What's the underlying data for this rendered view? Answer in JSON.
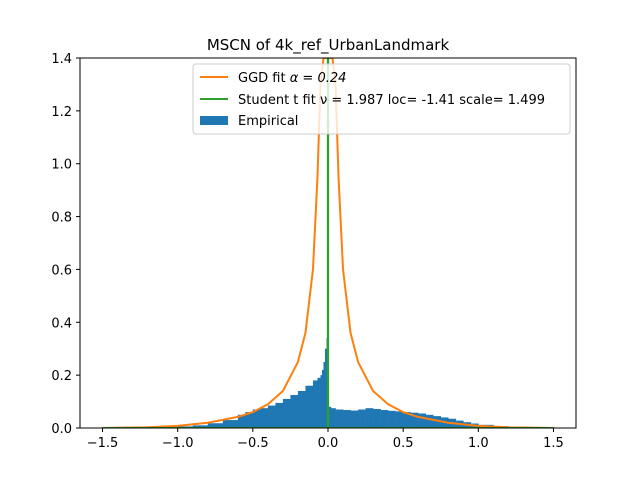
{
  "chart_data": {
    "type": "area",
    "title": "MSCN of 4k_ref_UrbanLandmark",
    "xlabel": "",
    "ylabel": "",
    "xlim": [
      -1.65,
      1.65
    ],
    "ylim": [
      0,
      1.4
    ],
    "x_ticks": [
      -1.5,
      -1.0,
      -0.5,
      0.0,
      0.5,
      1.0,
      1.5
    ],
    "x_tick_labels": [
      "−1.5",
      "−1.0",
      "−0.5",
      "0.0",
      "0.5",
      "1.0",
      "1.5"
    ],
    "y_ticks": [
      0.0,
      0.2,
      0.4,
      0.6,
      0.8,
      1.0,
      1.2,
      1.4
    ],
    "y_tick_labels": [
      "0.0",
      "0.2",
      "0.4",
      "0.6",
      "0.8",
      "1.0",
      "1.2",
      "1.4"
    ],
    "grid": false,
    "legend_position": "top-right",
    "series": [
      {
        "name": "GGD fit α = 0.24",
        "legend_label_prefix": "GGD fit ",
        "legend_label_math": "α = 0.24",
        "kind": "line",
        "color": "#ff7f0e",
        "x": [
          -1.5,
          -1.2,
          -1.0,
          -0.8,
          -0.6,
          -0.5,
          -0.4,
          -0.3,
          -0.2,
          -0.15,
          -0.1,
          -0.07,
          -0.05,
          -0.03,
          -0.02,
          0.0,
          0.02,
          0.03,
          0.05,
          0.07,
          0.1,
          0.15,
          0.2,
          0.3,
          0.4,
          0.5,
          0.6,
          0.8,
          1.0,
          1.2,
          1.5
        ],
        "y": [
          0.0,
          0.003,
          0.008,
          0.02,
          0.042,
          0.06,
          0.09,
          0.14,
          0.25,
          0.36,
          0.6,
          0.95,
          1.3,
          1.4,
          1.4,
          1.4,
          1.4,
          1.4,
          1.3,
          0.95,
          0.6,
          0.36,
          0.25,
          0.14,
          0.09,
          0.06,
          0.042,
          0.02,
          0.008,
          0.003,
          0.0
        ]
      },
      {
        "name": "Student t fit ν = 1.987 loc= -1.41 scale= 1.499",
        "legend_label_prefix": "Student t fit ",
        "legend_label_math": "ν = 1.987 loc= -1.41 scale= 1.499",
        "kind": "line",
        "color": "#2ca02c",
        "x": [
          -1.5,
          -0.001,
          -0.001,
          0.001,
          0.001,
          1.5
        ],
        "y": [
          0.0,
          0.0,
          1.4,
          1.4,
          0.0,
          0.0
        ]
      },
      {
        "name": "Empirical",
        "kind": "histogram",
        "color": "#1f77b4",
        "x": [
          -1.5,
          -1.2,
          -1.0,
          -0.9,
          -0.8,
          -0.7,
          -0.6,
          -0.55,
          -0.5,
          -0.45,
          -0.4,
          -0.35,
          -0.3,
          -0.25,
          -0.2,
          -0.15,
          -0.1,
          -0.07,
          -0.05,
          -0.04,
          -0.03,
          -0.02,
          -0.01,
          -0.005,
          0.0,
          0.005,
          0.02,
          0.05,
          0.1,
          0.15,
          0.2,
          0.25,
          0.3,
          0.35,
          0.4,
          0.45,
          0.5,
          0.55,
          0.6,
          0.65,
          0.7,
          0.75,
          0.8,
          0.85,
          0.9,
          0.95,
          1.0,
          1.1,
          1.2,
          1.3,
          1.5
        ],
        "y": [
          0.0,
          0.003,
          0.006,
          0.01,
          0.018,
          0.03,
          0.05,
          0.06,
          0.07,
          0.075,
          0.085,
          0.095,
          0.11,
          0.125,
          0.14,
          0.16,
          0.18,
          0.19,
          0.2,
          0.22,
          0.25,
          0.3,
          0.34,
          0.43,
          0.0,
          0.08,
          0.075,
          0.07,
          0.068,
          0.066,
          0.07,
          0.075,
          0.072,
          0.068,
          0.065,
          0.063,
          0.06,
          0.058,
          0.055,
          0.05,
          0.045,
          0.04,
          0.035,
          0.028,
          0.022,
          0.017,
          0.012,
          0.007,
          0.004,
          0.002,
          0.0
        ]
      }
    ]
  }
}
